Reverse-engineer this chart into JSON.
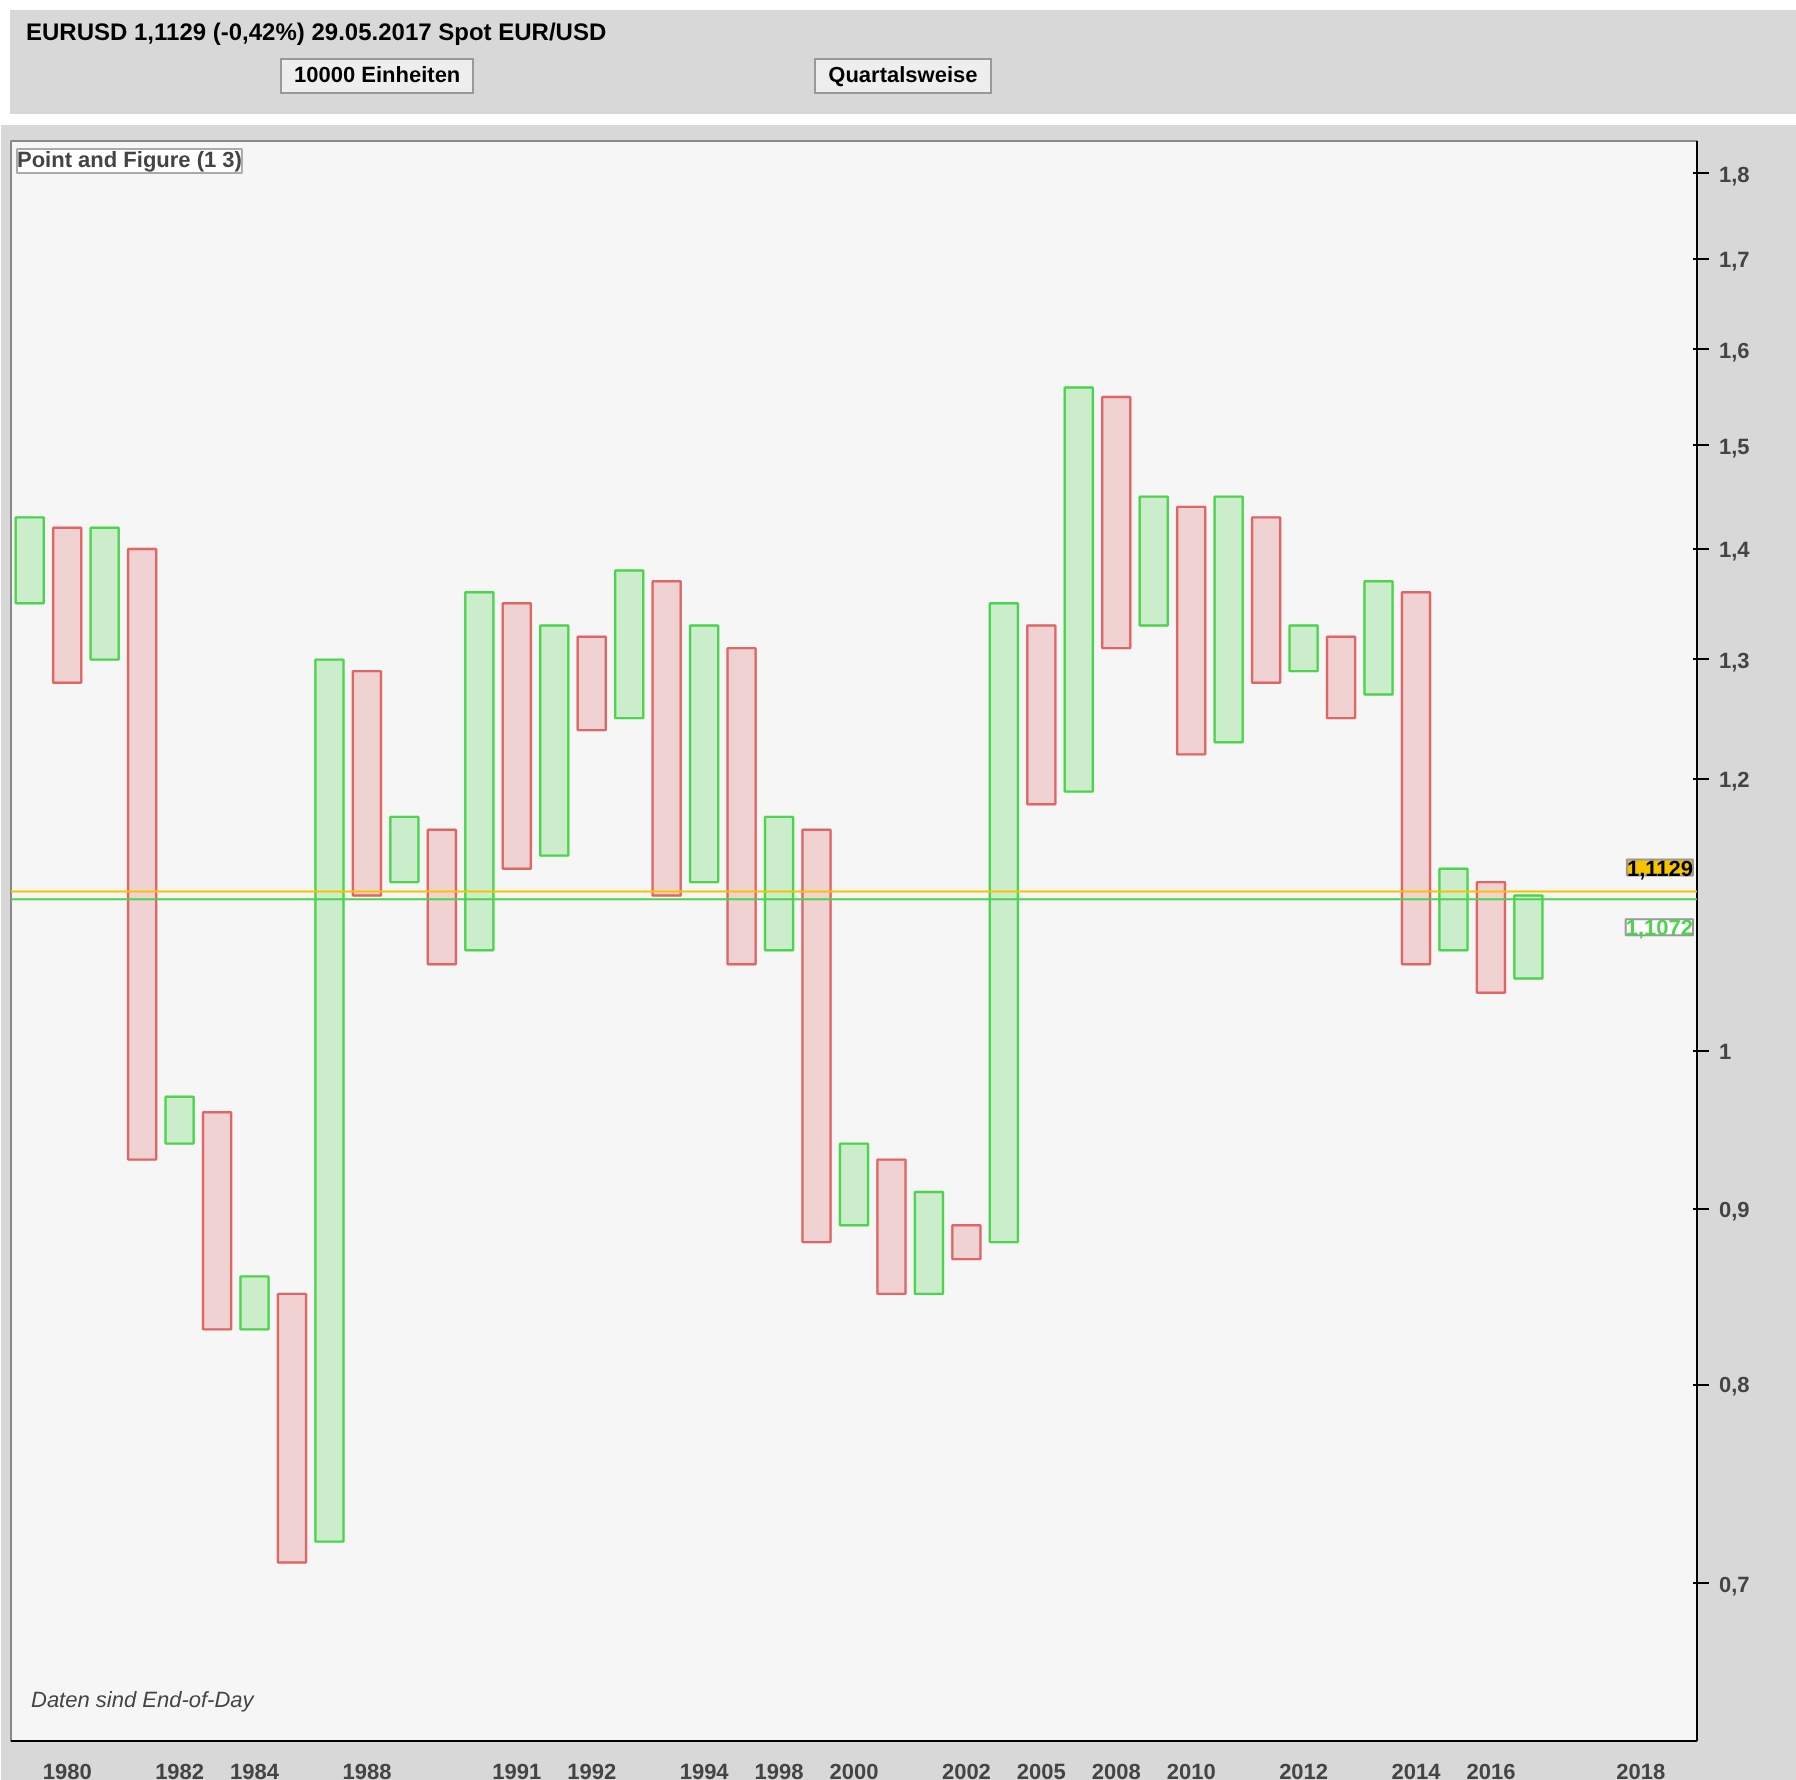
{
  "chart_data": {
    "type": "bar",
    "title": "EURUSD   1,1129 (-0,42%)   29.05.2017 Spot EUR/USD",
    "subtitle": "Point and Figure (1 3)",
    "annotations": [
      "10000 Einheiten",
      "Quartalsweise",
      "Daten sind End-of-Day"
    ],
    "categories": [
      null,
      "1980",
      null,
      null,
      "1982",
      null,
      "1984",
      null,
      null,
      "1988",
      null,
      null,
      null,
      "1991",
      null,
      "1992",
      null,
      null,
      "1994",
      null,
      "1998",
      null,
      "2000",
      null,
      null,
      "2002",
      null,
      "2005",
      null,
      "2008",
      null,
      "2010",
      null,
      null,
      "2012",
      null,
      null,
      "2014",
      null,
      "2016",
      null,
      null,
      null,
      "2018",
      null
    ],
    "base": [
      1.35,
      1.28,
      1.3,
      0.93,
      0.94,
      0.83,
      0.83,
      0.71,
      0.72,
      1.11,
      1.12,
      1.06,
      1.07,
      1.13,
      1.14,
      1.24,
      1.25,
      1.11,
      1.12,
      1.06,
      1.07,
      0.88,
      0.89,
      0.85,
      0.85,
      0.87,
      0.88,
      1.18,
      1.19,
      1.31,
      1.33,
      1.22,
      1.23,
      1.28,
      1.29,
      1.25,
      1.27,
      1.06,
      1.07,
      1.04,
      1.05,
      null,
      null,
      null,
      null
    ],
    "values": [
      0.08,
      0.14,
      0.12,
      0.47,
      0.03,
      0.13,
      0.03,
      0.14,
      0.58,
      0.18,
      0.05,
      0.1,
      0.29,
      0.22,
      0.19,
      0.08,
      0.13,
      0.26,
      0.21,
      0.25,
      0.1,
      0.28,
      0.05,
      0.08,
      0.06,
      0.02,
      0.47,
      0.15,
      0.37,
      0.24,
      0.12,
      0.22,
      0.22,
      0.15,
      0.04,
      0.07,
      0.1,
      0.3,
      0.06,
      0.08,
      0.06,
      null,
      null,
      null,
      null
    ],
    "colors": [
      "#4cd44c",
      "#e06666",
      "#4cd44c",
      "#e06666",
      "#4cd44c",
      "#e06666",
      "#4cd44c",
      "#e06666",
      "#4cd44c",
      "#e06666",
      "#4cd44c",
      "#e06666",
      "#4cd44c",
      "#e06666",
      "#4cd44c",
      "#e06666",
      "#4cd44c",
      "#e06666",
      "#4cd44c",
      "#e06666",
      "#4cd44c",
      "#e06666",
      "#4cd44c",
      "#e06666",
      "#4cd44c",
      "#e06666",
      "#4cd44c",
      "#e06666",
      "#4cd44c",
      "#e06666",
      "#4cd44c",
      "#e06666",
      "#4cd44c",
      "#e06666",
      "#4cd44c",
      "#e06666",
      "#4cd44c",
      "#e06666",
      "#4cd44c",
      "#e06666",
      "#4cd44c",
      "#e06666",
      "#4cd44c",
      "#e06666",
      "#4cd44c"
    ],
    "log": "y",
    "ylim": [
      0.63,
      1.84
    ],
    "yticks": [
      {
        "value": 0.7,
        "label": "0,7"
      },
      {
        "value": 0.8,
        "label": "0,8"
      },
      {
        "value": 0.9,
        "label": "0,9"
      },
      1,
      {
        "value": 1.2,
        "label": "1,2"
      },
      {
        "value": 1.3,
        "label": "1,3"
      },
      {
        "value": 1.4,
        "label": "1,4"
      },
      {
        "value": 1.5,
        "label": "1,5"
      },
      {
        "value": 1.6,
        "label": "1,6"
      },
      {
        "value": 1.7,
        "label": "1,7"
      },
      {
        "value": 1.8,
        "label": "1,8"
      }
    ],
    "ref_lines": [
      {
        "axis": "y",
        "value": 1.1129,
        "label": "1,1129",
        "color": "#f5c400"
      },
      {
        "axis": "y",
        "value": 1.1072,
        "label": "1,1072",
        "color": "#4cd44c"
      }
    ],
    "grid": false
  }
}
